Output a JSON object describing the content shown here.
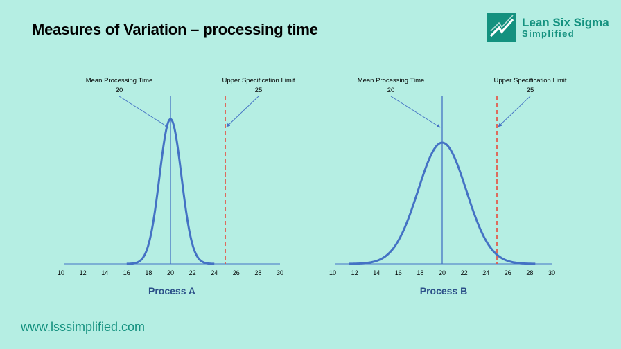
{
  "page": {
    "title": "Measures of Variation – processing time",
    "website": "www.lsssimplified.com",
    "logo": {
      "line1": "Lean Six Sigma",
      "line2": "Simplified",
      "color": "#14917f"
    },
    "background": "#b5eee3"
  },
  "chart_data": [
    {
      "type": "line",
      "title": "Process A",
      "x_ticks": [
        10,
        12,
        14,
        16,
        18,
        20,
        22,
        24,
        26,
        28,
        30
      ],
      "xlim": [
        10,
        30
      ],
      "distribution": {
        "kind": "normal",
        "mean": 20,
        "sd": 1.0,
        "x_range": [
          16,
          24
        ]
      },
      "mean_line": {
        "value": 20,
        "label": "Mean Processing Time",
        "value_label": "20"
      },
      "usl_line": {
        "value": 25,
        "label": "Upper Specification Limit",
        "value_label": "25"
      },
      "curve_color": "#4472c4",
      "usl_color": "#e74c3c",
      "grid": false
    },
    {
      "type": "line",
      "title": "Process B",
      "x_ticks": [
        10,
        12,
        14,
        16,
        18,
        20,
        22,
        24,
        26,
        28,
        30
      ],
      "xlim": [
        10,
        30
      ],
      "distribution": {
        "kind": "normal",
        "mean": 20,
        "sd": 2.2,
        "x_range": [
          11.5,
          28.5
        ]
      },
      "mean_line": {
        "value": 20,
        "label": "Mean Processing Time",
        "value_label": "20"
      },
      "usl_line": {
        "value": 25,
        "label": "Upper Specification Limit",
        "value_label": "25"
      },
      "curve_color": "#4472c4",
      "usl_color": "#e74c3c",
      "grid": false
    }
  ]
}
